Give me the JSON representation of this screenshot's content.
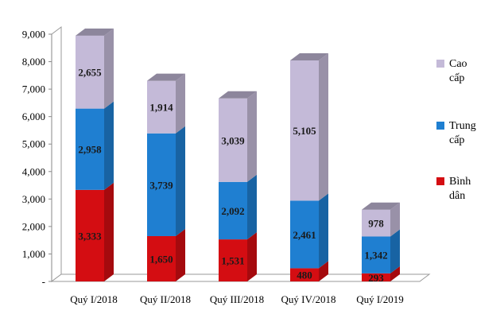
{
  "chart_data": {
    "type": "bar",
    "stacked": true,
    "three_d": true,
    "categories": [
      "Quý I/2018",
      "Quý II/2018",
      "Quý III/2018",
      "Quý IV/2018",
      "Quý I/2019"
    ],
    "series": [
      {
        "name": "Bình dân",
        "legend_lines": [
          "Bình",
          "dân"
        ],
        "color": "#d40d12",
        "values": [
          3333,
          1650,
          1531,
          480,
          293
        ],
        "labels": [
          "3,333",
          "1,650",
          "1,531",
          "480",
          "293"
        ]
      },
      {
        "name": "Trung cấp",
        "legend_lines": [
          "Trung",
          "cấp"
        ],
        "color": "#1f7fd1",
        "values": [
          2958,
          3739,
          2092,
          2461,
          1342
        ],
        "labels": [
          "2,958",
          "3,739",
          "2,092",
          "2,461",
          "1,342"
        ]
      },
      {
        "name": "Cao cấp",
        "legend_lines": [
          "Cao",
          "cấp"
        ],
        "color": "#c4bad8",
        "values": [
          2655,
          1914,
          3039,
          5105,
          978
        ],
        "labels": [
          "2,655",
          "1,914",
          "3,039",
          "5,105",
          "978"
        ]
      }
    ],
    "yticks": [
      "-",
      "1,000",
      "2,000",
      "3,000",
      "4,000",
      "5,000",
      "6,000",
      "7,000",
      "8,000",
      "9,000"
    ],
    "ylim": [
      0,
      9000
    ],
    "grid": false,
    "legend": "right",
    "title": "",
    "xlabel": "",
    "ylabel": ""
  }
}
